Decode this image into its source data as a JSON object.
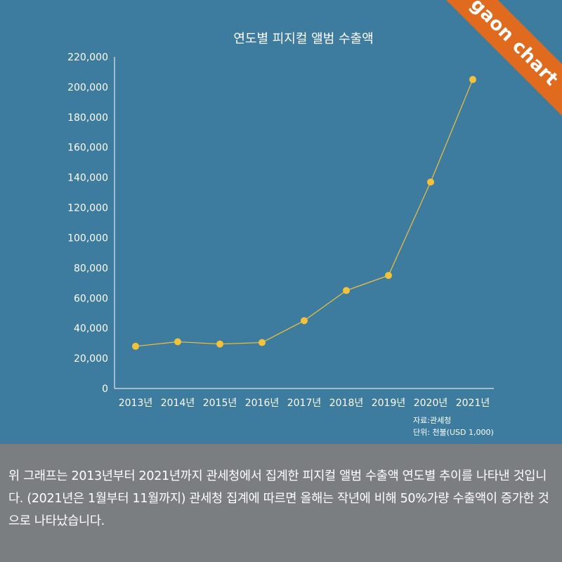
{
  "brand": {
    "label": "gaon chart",
    "ribbon_color": "#e06a1e"
  },
  "colors": {
    "background": "#3d7c9f",
    "line": "#f3c13a",
    "marker": "#f3c13a",
    "axis": "#ffffff",
    "caption_bg": "#7b7e80"
  },
  "chart_data": {
    "type": "line",
    "title": "연도별 피지컬 앨범 수출액",
    "categories": [
      "2013년",
      "2014년",
      "2015년",
      "2016년",
      "2017년",
      "2018년",
      "2019년",
      "2020년",
      "2021년"
    ],
    "series": [
      {
        "values": [
          28000,
          31000,
          29500,
          30500,
          45000,
          65000,
          75000,
          137000,
          205000
        ]
      }
    ],
    "y_ticks": [
      "0",
      "20,000",
      "40,000",
      "60,000",
      "80,000",
      "100,000",
      "120,000",
      "140,000",
      "160,000",
      "180,000",
      "200,000",
      "220,000"
    ],
    "ylim": [
      0,
      220000
    ],
    "grid": false,
    "xlabel": "",
    "ylabel": ""
  },
  "source": {
    "line1": "자료:관세청",
    "line2": "단위: 천불(USD 1,000)"
  },
  "caption": "위 그래프는 2013년부터 2021년까지 관세청에서 집계한 피지컬 앨범 수출액 연도별 추이를 나타낸 것입니다. (2021년은 1월부터 11월까지) 관세청 집계에 따르면 올해는 작년에 비해 50%가량 수출액이 증가한 것으로 나타났습니다."
}
